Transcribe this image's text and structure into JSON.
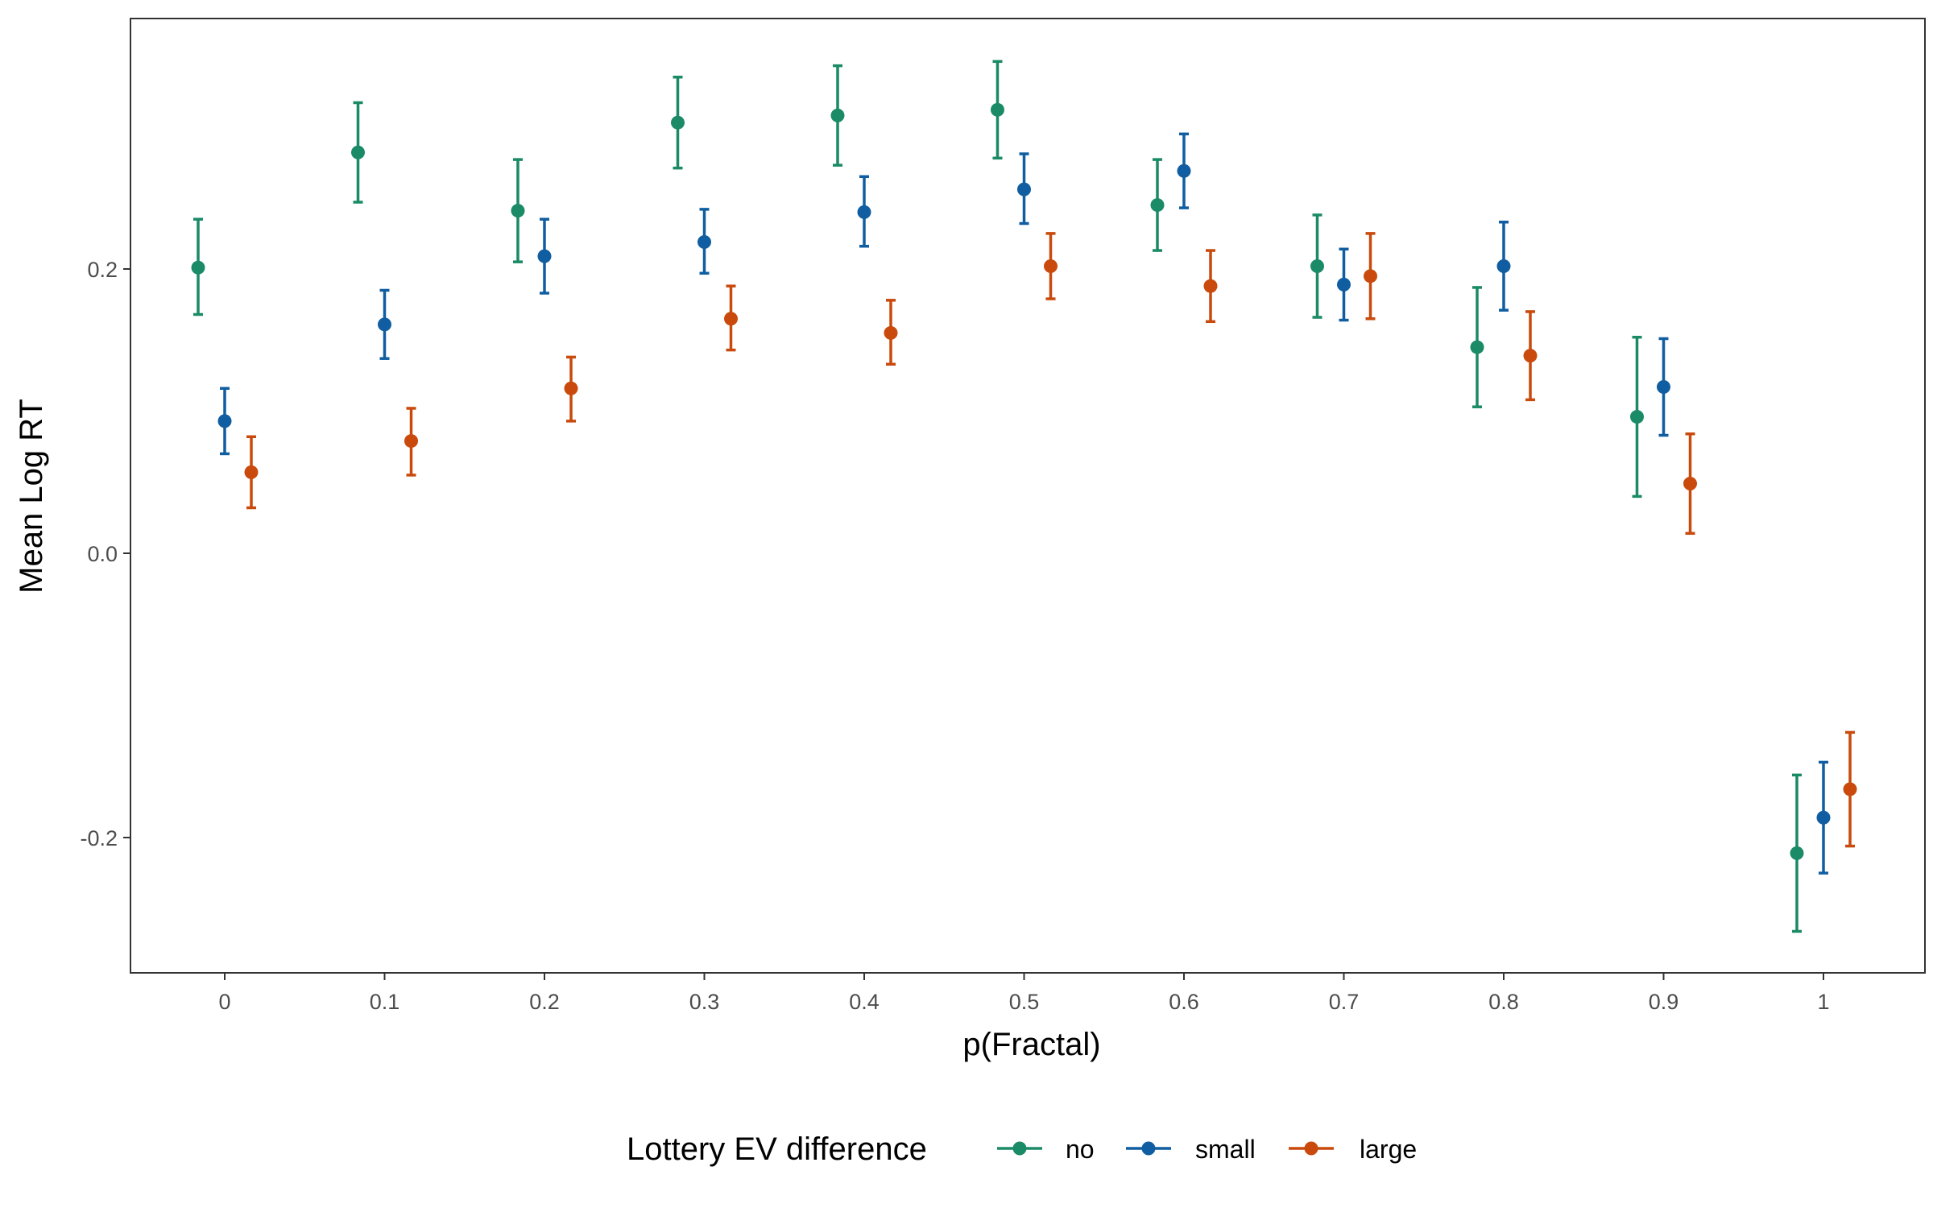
{
  "chart_data": {
    "type": "scatter",
    "title": "",
    "xlabel": "p(Fractal)",
    "ylabel": "Mean Log RT",
    "x_categories": [
      "0",
      "0.1",
      "0.2",
      "0.3",
      "0.4",
      "0.5",
      "0.6",
      "0.7",
      "0.8",
      "0.9",
      "1"
    ],
    "x_values": [
      0,
      0.1,
      0.2,
      0.3,
      0.4,
      0.5,
      0.6,
      0.7,
      0.8,
      0.9,
      1
    ],
    "ylim": [
      -0.3,
      0.375
    ],
    "y_ticks": [
      -0.2,
      0.0,
      0.2
    ],
    "y_tick_labels": [
      "-0.2",
      "0.0",
      "0.2"
    ],
    "grid": false,
    "error_bars": true,
    "legend": {
      "title": "Lottery EV difference",
      "position": "bottom"
    },
    "series": [
      {
        "name": "no",
        "color": "#1b8a66",
        "values": [
          0.201,
          0.282,
          0.241,
          0.303,
          0.308,
          0.312,
          0.245,
          0.202,
          0.145,
          0.096,
          -0.211
        ],
        "lower": [
          0.168,
          0.247,
          0.205,
          0.271,
          0.273,
          0.278,
          0.213,
          0.166,
          0.103,
          0.04,
          -0.266
        ],
        "upper": [
          0.235,
          0.317,
          0.277,
          0.335,
          0.343,
          0.346,
          0.277,
          0.238,
          0.187,
          0.152,
          -0.156
        ]
      },
      {
        "name": "small",
        "color": "#105ea1",
        "values": [
          0.093,
          0.161,
          0.209,
          0.219,
          0.24,
          0.256,
          0.269,
          0.189,
          0.202,
          0.117,
          -0.186
        ],
        "lower": [
          0.07,
          0.137,
          0.183,
          0.197,
          0.216,
          0.232,
          0.243,
          0.164,
          0.171,
          0.083,
          -0.225
        ],
        "upper": [
          0.116,
          0.185,
          0.235,
          0.242,
          0.265,
          0.281,
          0.295,
          0.214,
          0.233,
          0.151,
          -0.147
        ]
      },
      {
        "name": "large",
        "color": "#c94a0c",
        "values": [
          0.057,
          0.079,
          0.116,
          0.165,
          0.155,
          0.202,
          0.188,
          0.195,
          0.139,
          0.049,
          -0.166
        ],
        "lower": [
          0.032,
          0.055,
          0.093,
          0.143,
          0.133,
          0.179,
          0.163,
          0.165,
          0.108,
          0.014,
          -0.206
        ],
        "upper": [
          0.082,
          0.102,
          0.138,
          0.188,
          0.178,
          0.225,
          0.213,
          0.225,
          0.17,
          0.084,
          -0.126
        ]
      }
    ]
  }
}
